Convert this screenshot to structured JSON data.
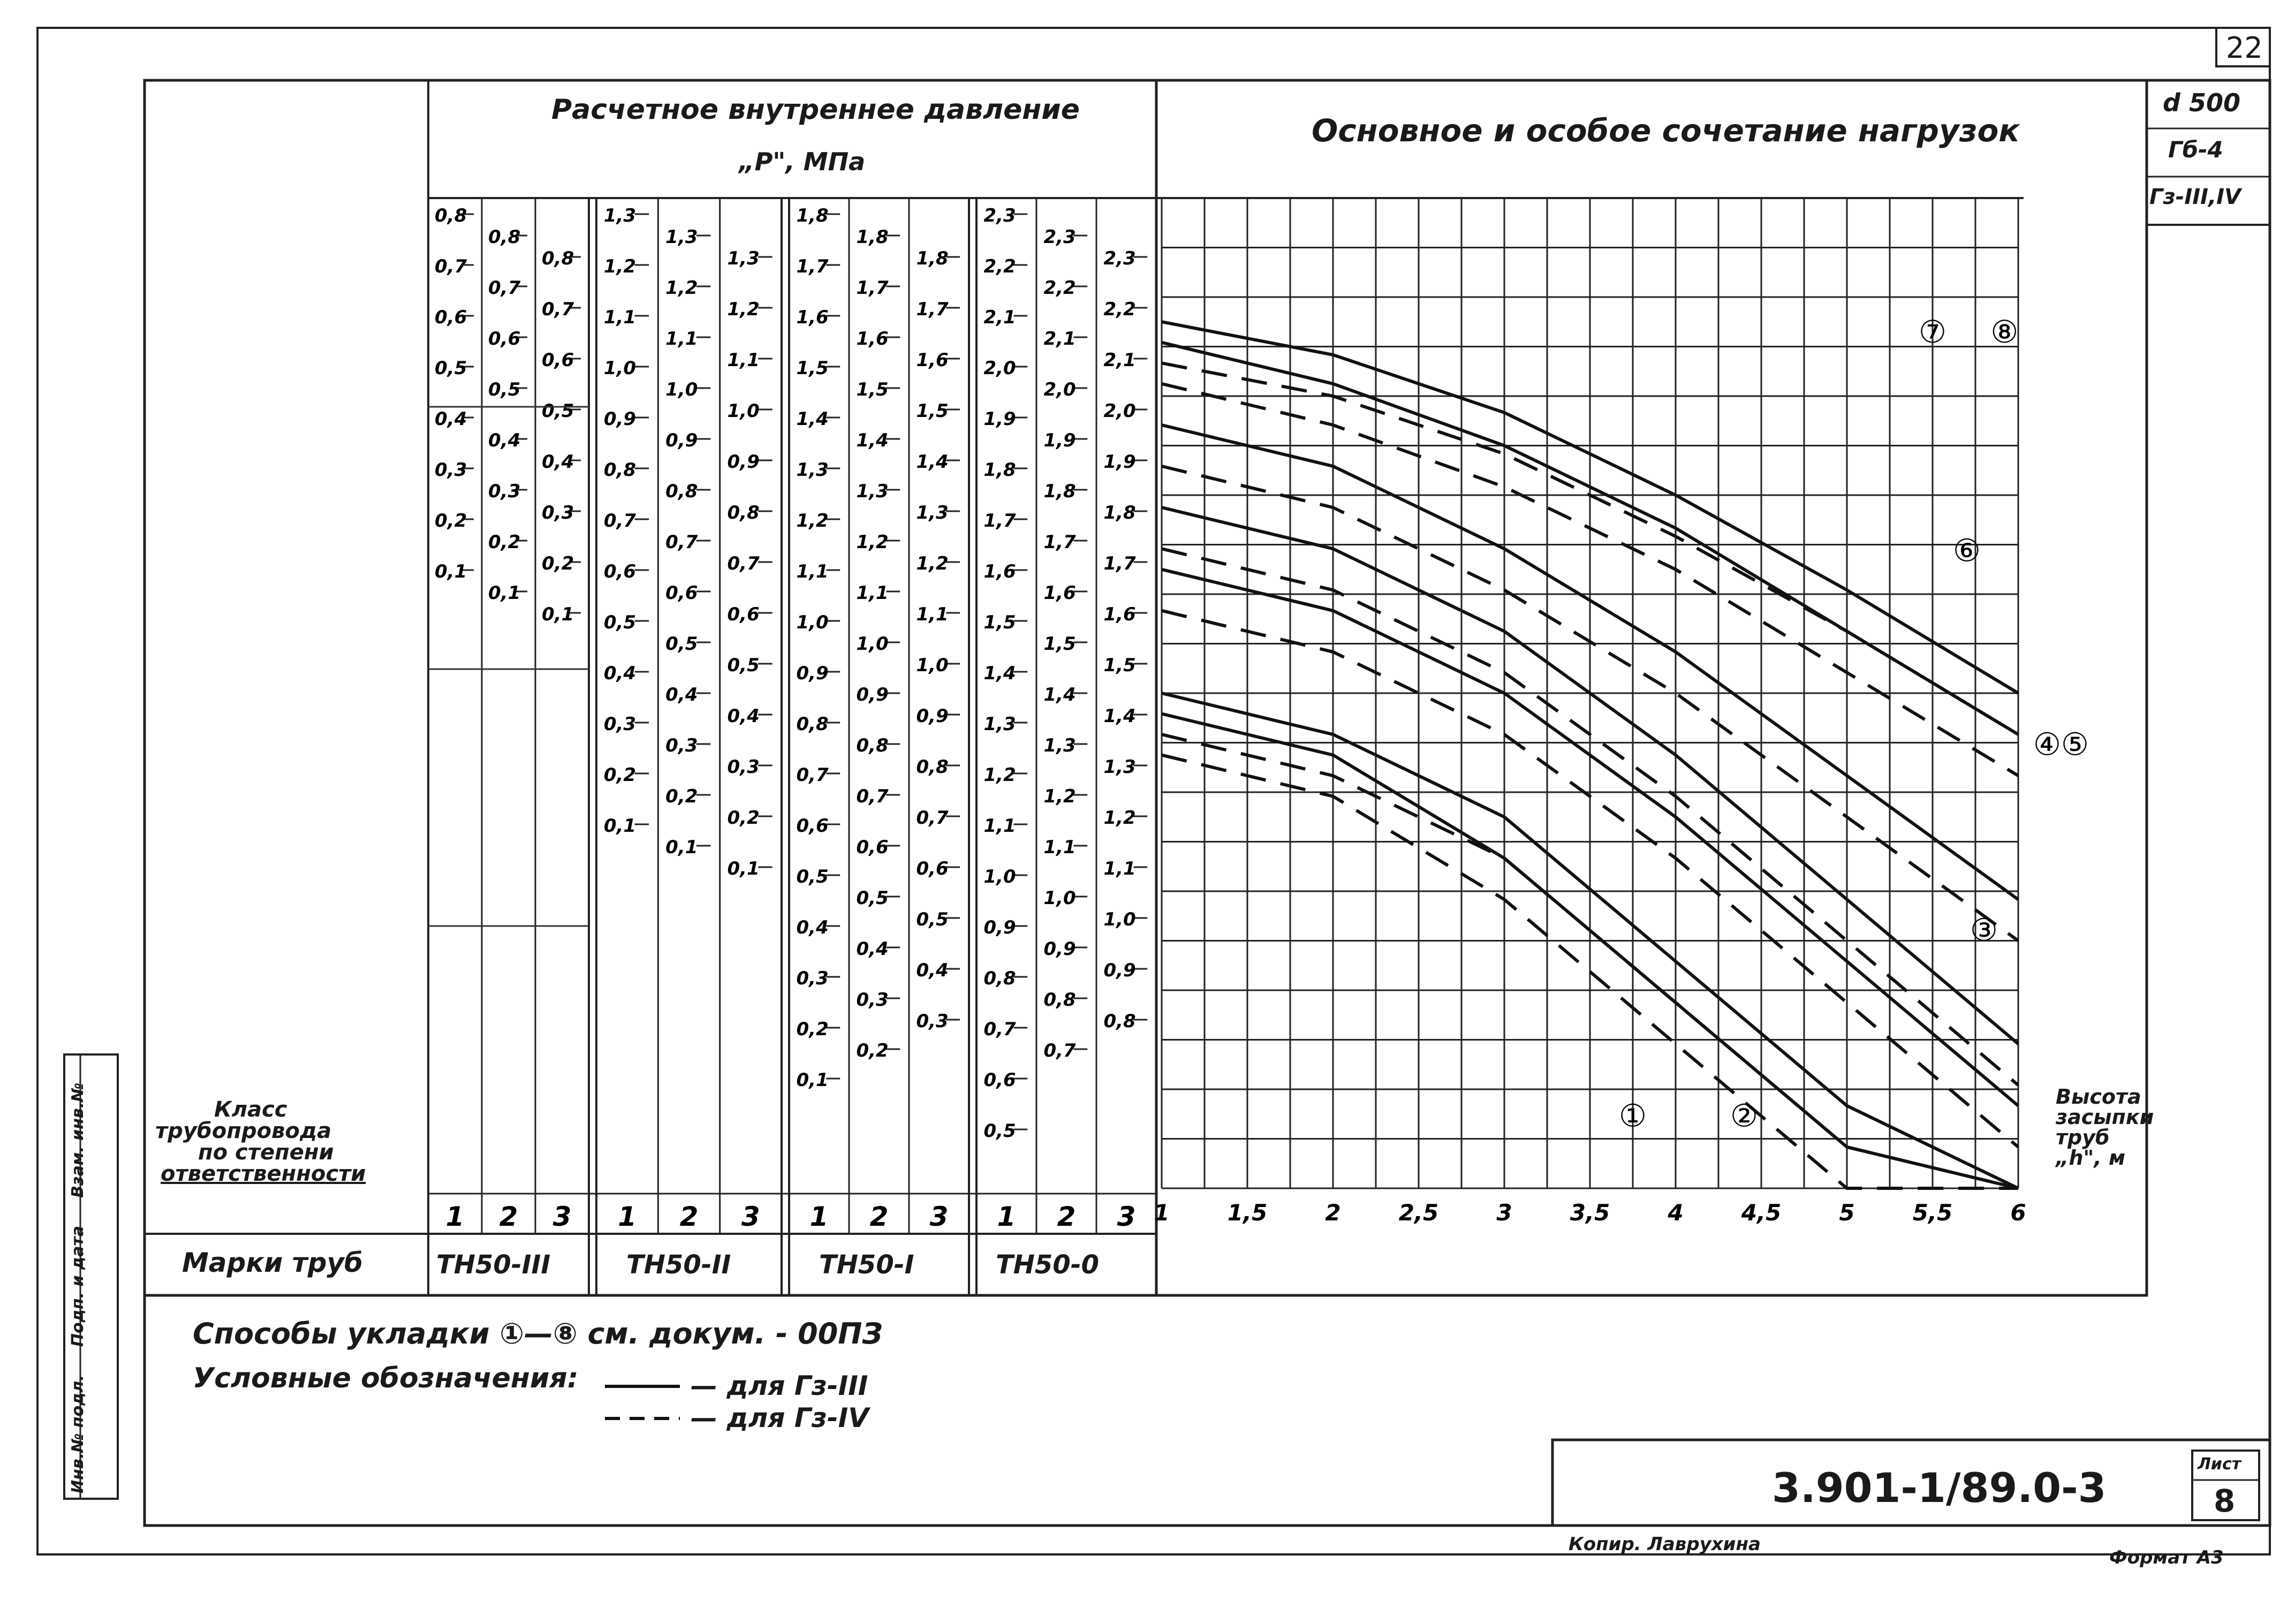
{
  "sheet": {
    "page_number": "22",
    "stamp": [
      "d 500",
      "Гб-4",
      "Гз-III,IV"
    ],
    "doc_code": "3.901-1/89.0-3",
    "list_label": "Лист",
    "list_number": "8",
    "copied_by": "Копир. Лаврухина",
    "format": "Формат А3",
    "side_stamp": [
      "Инв.№ подл.",
      "Подп. и дата",
      "Взам. инв.№"
    ]
  },
  "left_table": {
    "pressure_header_line1": "Расчетное внутреннее давление",
    "pressure_header_line2": "„P\", МПа",
    "class_label": [
      "Класс",
      "трубопровода",
      "по степени",
      "ответственности"
    ],
    "brand_label": "Марки труб",
    "groups": [
      {
        "brand": "ТН50-III",
        "columns": [
          {
            "class": "1",
            "scale": [
              "0,8",
              "0,7",
              "0,6",
              "0,5",
              "0,4",
              "0,3",
              "0,2",
              "0,1"
            ]
          },
          {
            "class": "2",
            "scale": [
              "0,8",
              "0,7",
              "0,6",
              "0,5",
              "0,4",
              "0,3",
              "0,2",
              "0,1"
            ]
          },
          {
            "class": "3",
            "scale": [
              "0,8",
              "0,7",
              "0,6",
              "0,5",
              "0,4",
              "0,3",
              "0,2",
              "0,1"
            ]
          }
        ]
      },
      {
        "brand": "ТН50-II",
        "columns": [
          {
            "class": "1",
            "scale": [
              "1,3",
              "1,2",
              "1,1",
              "1,0",
              "0,9",
              "0,8",
              "0,7",
              "0,6",
              "0,5",
              "0,4",
              "0,3",
              "0,2",
              "0,1"
            ]
          },
          {
            "class": "2",
            "scale": [
              "1,3",
              "1,2",
              "1,1",
              "1,0",
              "0,9",
              "0,8",
              "0,7",
              "0,6",
              "0,5",
              "0,4",
              "0,3",
              "0,2",
              "0,1"
            ]
          },
          {
            "class": "3",
            "scale": [
              "1,3",
              "1,2",
              "1,1",
              "1,0",
              "0,9",
              "0,8",
              "0,7",
              "0,6",
              "0,5",
              "0,4",
              "0,3",
              "0,2",
              "0,1"
            ]
          }
        ]
      },
      {
        "brand": "ТН50-I",
        "columns": [
          {
            "class": "1",
            "scale": [
              "1,8",
              "1,7",
              "1,6",
              "1,5",
              "1,4",
              "1,3",
              "1,2",
              "1,1",
              "1,0",
              "0,9",
              "0,8",
              "0,7",
              "0,6",
              "0,5",
              "0,4",
              "0,3",
              "0,2",
              "0,1"
            ]
          },
          {
            "class": "2",
            "scale": [
              "1,8",
              "1,7",
              "1,6",
              "1,5",
              "1,4",
              "1,3",
              "1,2",
              "1,1",
              "1,0",
              "0,9",
              "0,8",
              "0,7",
              "0,6",
              "0,5",
              "0,4",
              "0,3",
              "0,2"
            ]
          },
          {
            "class": "3",
            "scale": [
              "1,8",
              "1,7",
              "1,6",
              "1,5",
              "1,4",
              "1,3",
              "1,2",
              "1,1",
              "1,0",
              "0,9",
              "0,8",
              "0,7",
              "0,6",
              "0,5",
              "0,4",
              "0,3"
            ]
          }
        ]
      },
      {
        "brand": "ТН50-0",
        "columns": [
          {
            "class": "1",
            "scale": [
              "2,3",
              "2,2",
              "2,1",
              "2,0",
              "1,9",
              "1,8",
              "1,7",
              "1,6",
              "1,5",
              "1,4",
              "1,3",
              "1,2",
              "1,1",
              "1,0",
              "0,9",
              "0,8",
              "0,7",
              "0,6",
              "0,5"
            ]
          },
          {
            "class": "2",
            "scale": [
              "2,3",
              "2,2",
              "2,1",
              "2,0",
              "1,9",
              "1,8",
              "1,7",
              "1,6",
              "1,5",
              "1,4",
              "1,3",
              "1,2",
              "1,1",
              "1,0",
              "0,9",
              "0,8",
              "0,7"
            ]
          },
          {
            "class": "3",
            "scale": [
              "2,3",
              "2,2",
              "2,1",
              "2,0",
              "1,9",
              "1,8",
              "1,7",
              "1,6",
              "1,5",
              "1,4",
              "1,3",
              "1,2",
              "1,1",
              "1,0",
              "0,9",
              "0,8"
            ]
          }
        ]
      }
    ]
  },
  "notes": {
    "method_line": "Способы укладки ①—⑧ см. докум. - 00ПЗ",
    "legend_title": "Условные обозначения:",
    "legend_solid": "— для Гз-III",
    "legend_dashed": "— для Гз-IV"
  },
  "chart_data": {
    "type": "line",
    "title": "Основное и особое сочетание нагрузок",
    "xlabel": "Высота засыпки труб „h\", м",
    "ylabel": "",
    "x_ticks": [
      "1",
      "1,5",
      "2",
      "2,5",
      "3",
      "3,5",
      "4",
      "4,5",
      "5",
      "5,5",
      "6"
    ],
    "xlim": [
      1,
      6
    ],
    "ylim": [
      0,
      2.4
    ],
    "grid": true,
    "series": [
      {
        "name": "①",
        "style": "solid",
        "x": [
          1,
          2,
          3,
          4,
          5,
          6
        ],
        "y": [
          1.15,
          1.05,
          0.8,
          0.45,
          0.1,
          0.0
        ]
      },
      {
        "name": "①",
        "style": "dashed",
        "x": [
          1,
          2,
          3,
          4,
          5,
          6
        ],
        "y": [
          1.05,
          0.95,
          0.7,
          0.35,
          0.0,
          0.0
        ]
      },
      {
        "name": "②",
        "style": "solid",
        "x": [
          1,
          2,
          3,
          4,
          5,
          6
        ],
        "y": [
          1.2,
          1.1,
          0.9,
          0.55,
          0.2,
          0.0
        ]
      },
      {
        "name": "②",
        "style": "dashed",
        "x": [
          1,
          2,
          3,
          4,
          5,
          6
        ],
        "y": [
          1.1,
          1.0,
          0.8,
          0.45,
          0.1,
          0.0
        ]
      },
      {
        "name": "③",
        "style": "solid",
        "x": [
          1,
          2,
          3,
          4,
          5,
          6
        ],
        "y": [
          1.5,
          1.4,
          1.2,
          0.9,
          0.55,
          0.2
        ]
      },
      {
        "name": "③",
        "style": "dashed",
        "x": [
          1,
          2,
          3,
          4,
          5,
          6
        ],
        "y": [
          1.4,
          1.3,
          1.1,
          0.8,
          0.45,
          0.1
        ]
      },
      {
        "name": "④⑤",
        "style": "solid",
        "x": [
          1,
          2,
          3,
          4,
          5,
          6
        ],
        "y": [
          1.65,
          1.55,
          1.35,
          1.05,
          0.7,
          0.35
        ]
      },
      {
        "name": "④⑤",
        "style": "dashed",
        "x": [
          1,
          2,
          3,
          4,
          5,
          6
        ],
        "y": [
          1.55,
          1.45,
          1.25,
          0.95,
          0.6,
          0.25
        ]
      },
      {
        "name": "⑥",
        "style": "solid",
        "x": [
          1,
          2,
          3,
          4,
          5,
          6
        ],
        "y": [
          1.85,
          1.75,
          1.55,
          1.3,
          1.0,
          0.7
        ]
      },
      {
        "name": "⑥",
        "style": "dashed",
        "x": [
          1,
          2,
          3,
          4,
          5,
          6
        ],
        "y": [
          1.75,
          1.65,
          1.45,
          1.2,
          0.9,
          0.6
        ]
      },
      {
        "name": "⑦",
        "style": "solid",
        "x": [
          1,
          2,
          3,
          4,
          5,
          6
        ],
        "y": [
          2.05,
          1.95,
          1.8,
          1.6,
          1.35,
          1.1
        ]
      },
      {
        "name": "⑦",
        "style": "dashed",
        "x": [
          1,
          2,
          3,
          4,
          5,
          6
        ],
        "y": [
          1.95,
          1.85,
          1.7,
          1.5,
          1.25,
          1.0
        ]
      },
      {
        "name": "⑧",
        "style": "solid",
        "x": [
          1,
          2,
          3,
          4,
          5,
          6
        ],
        "y": [
          2.1,
          2.02,
          1.88,
          1.68,
          1.45,
          1.2
        ]
      },
      {
        "name": "⑧",
        "style": "dashed",
        "x": [
          1,
          2,
          3,
          4,
          5,
          6
        ],
        "y": [
          2.0,
          1.92,
          1.78,
          1.58,
          1.35,
          1.1
        ]
      }
    ],
    "curve_labels": [
      "①",
      "②",
      "③",
      "④⑤",
      "⑥",
      "⑦",
      "⑧"
    ]
  }
}
